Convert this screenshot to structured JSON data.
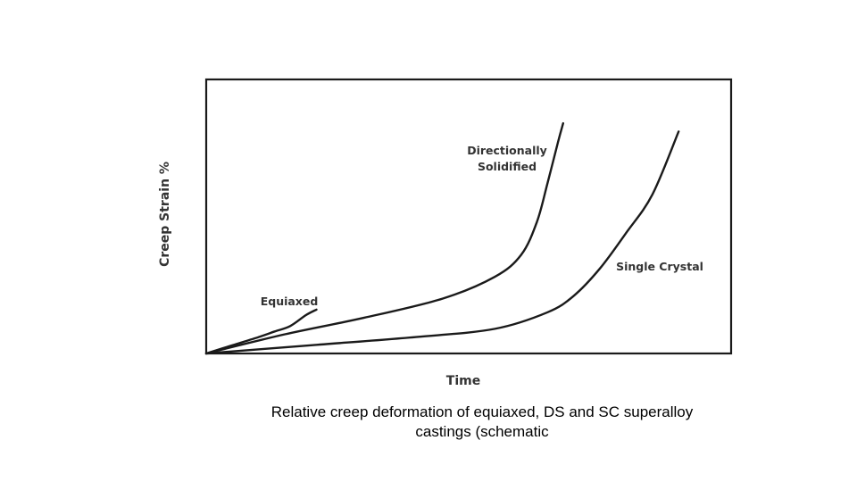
{
  "chart_data": {
    "type": "line",
    "title": "",
    "xlabel": "Time",
    "ylabel": "Creep Strain %",
    "xlim": [
      0,
      100
    ],
    "ylim": [
      0,
      100
    ],
    "grid": false,
    "legend": "none",
    "series": [
      {
        "name": "Equiaxed",
        "color": "#1a1a1a",
        "x": [
          0,
          5,
          10,
          13,
          16,
          19,
          21
        ],
        "y": [
          0,
          3,
          6,
          8,
          10,
          14,
          16
        ]
      },
      {
        "name": "Directionally Solidified",
        "color": "#1a1a1a",
        "x": [
          0,
          15,
          30,
          45,
          55,
          60,
          63,
          65,
          67,
          68
        ],
        "y": [
          0,
          7,
          13,
          20,
          28,
          36,
          48,
          62,
          77,
          84
        ]
      },
      {
        "name": "Single Crystal",
        "color": "#1a1a1a",
        "x": [
          0,
          20,
          40,
          55,
          65,
          70,
          75,
          80,
          85,
          90
        ],
        "y": [
          0,
          3,
          6,
          9,
          15,
          21,
          31,
          44,
          58,
          81
        ]
      }
    ]
  },
  "caption": {
    "line1": "Relative creep deformation of equiaxed, DS and SC superalloy",
    "line2": "castings (schematic"
  }
}
